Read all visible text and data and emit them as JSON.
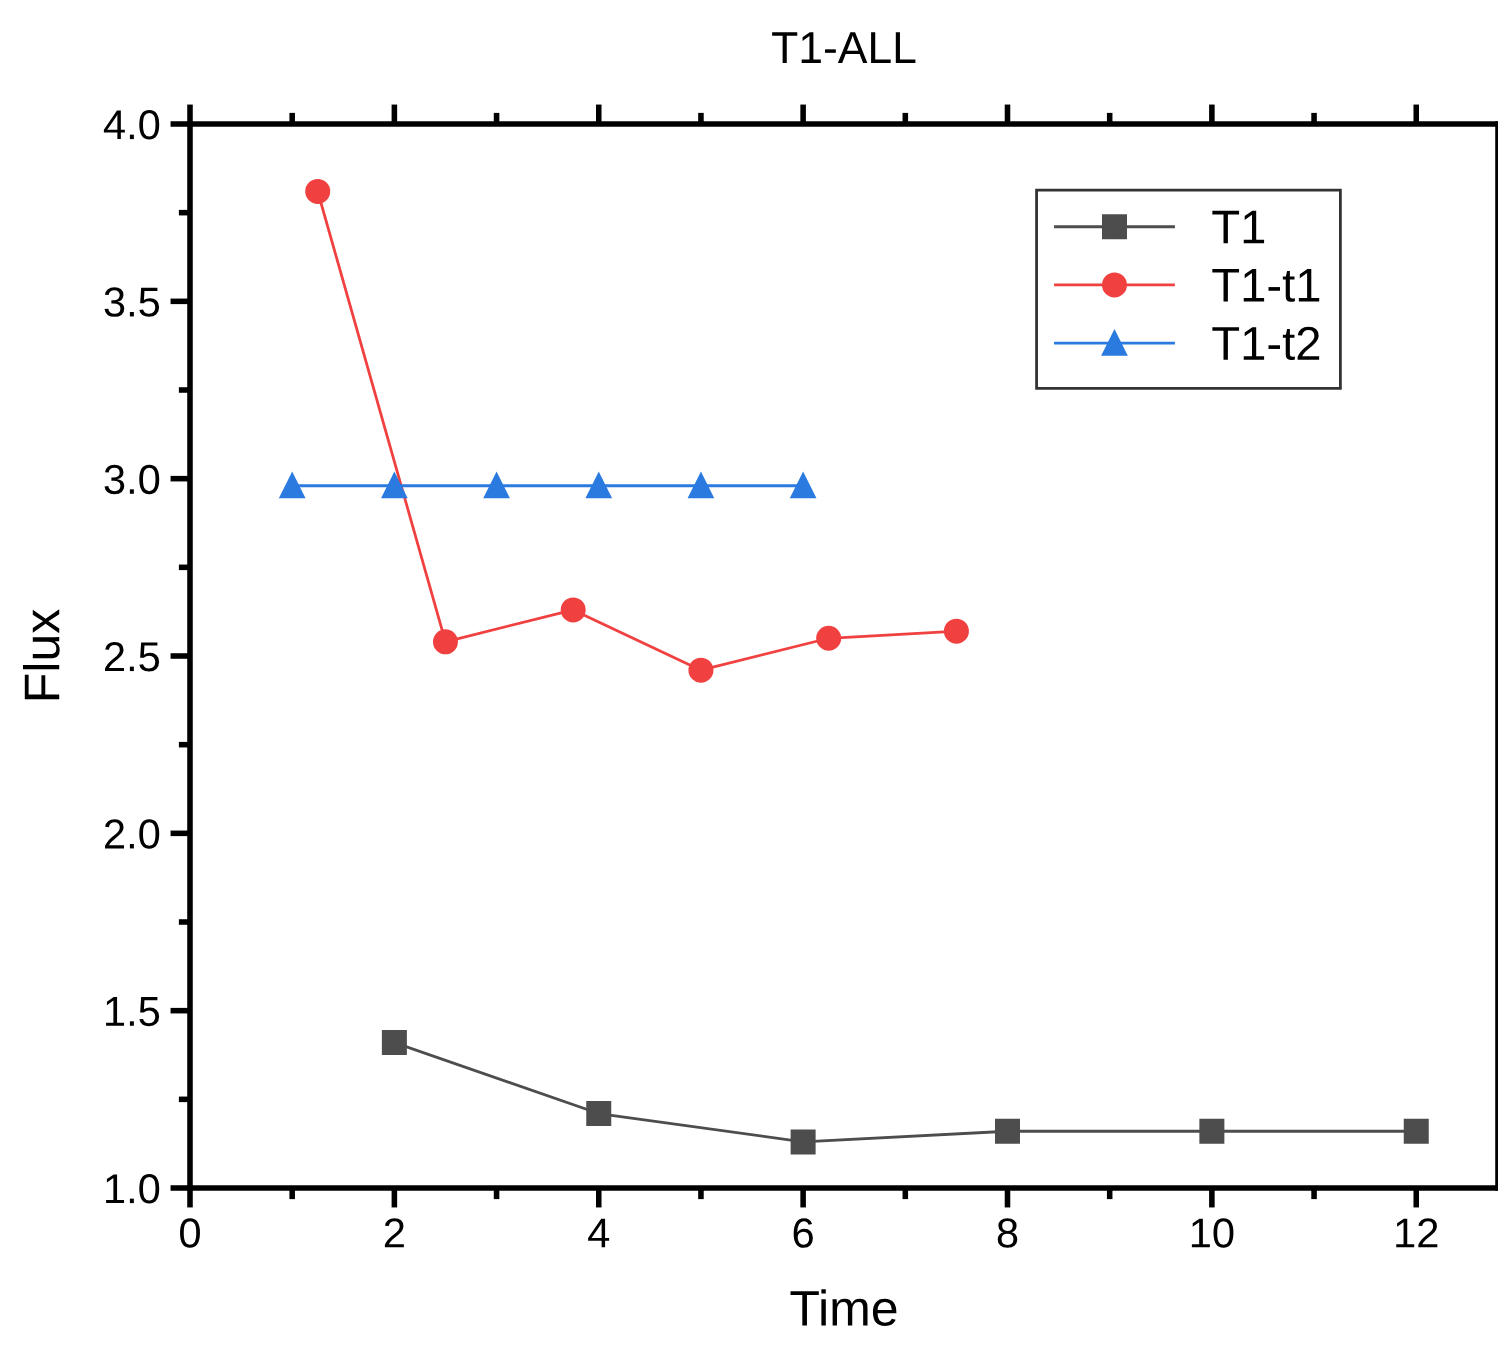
{
  "chart_data": {
    "type": "line",
    "title": "T1-ALL",
    "xlabel": "Time",
    "ylabel": "Flux",
    "xlim": [
      0,
      12.8
    ],
    "xticks": [
      0,
      2,
      4,
      6,
      8,
      10,
      12
    ],
    "ylim": [
      1.0,
      4.0
    ],
    "yticks": [
      {
        "value": 1,
        "label": "1.0"
      },
      1.5,
      {
        "value": 2,
        "label": "2.0"
      },
      2.5,
      {
        "value": 3,
        "label": "3.0"
      },
      3.5,
      {
        "value": 4,
        "label": "4.0"
      }
    ],
    "grid": false,
    "legend": "top right",
    "line_style": "solid",
    "series": [
      {
        "name": "T1",
        "color": "#4d4d4d",
        "marker": "square",
        "x": [
          2,
          4,
          6,
          8,
          10,
          12
        ],
        "values": [
          1.41,
          1.21,
          1.13,
          1.16,
          1.16,
          1.16
        ]
      },
      {
        "name": "T1-t1",
        "color": "#f04040",
        "marker": "circle",
        "x": [
          1.25,
          2.5,
          3.75,
          5,
          6.25,
          7.5
        ],
        "values": [
          3.81,
          2.54,
          2.63,
          2.46,
          2.55,
          2.57
        ]
      },
      {
        "name": "T1-t2",
        "color": "#2a7ae0",
        "marker": "triangle",
        "x": [
          1,
          2,
          3,
          4,
          5,
          6
        ],
        "values": [
          2.98,
          2.98,
          2.98,
          2.98,
          2.98,
          2.98
        ]
      }
    ]
  }
}
